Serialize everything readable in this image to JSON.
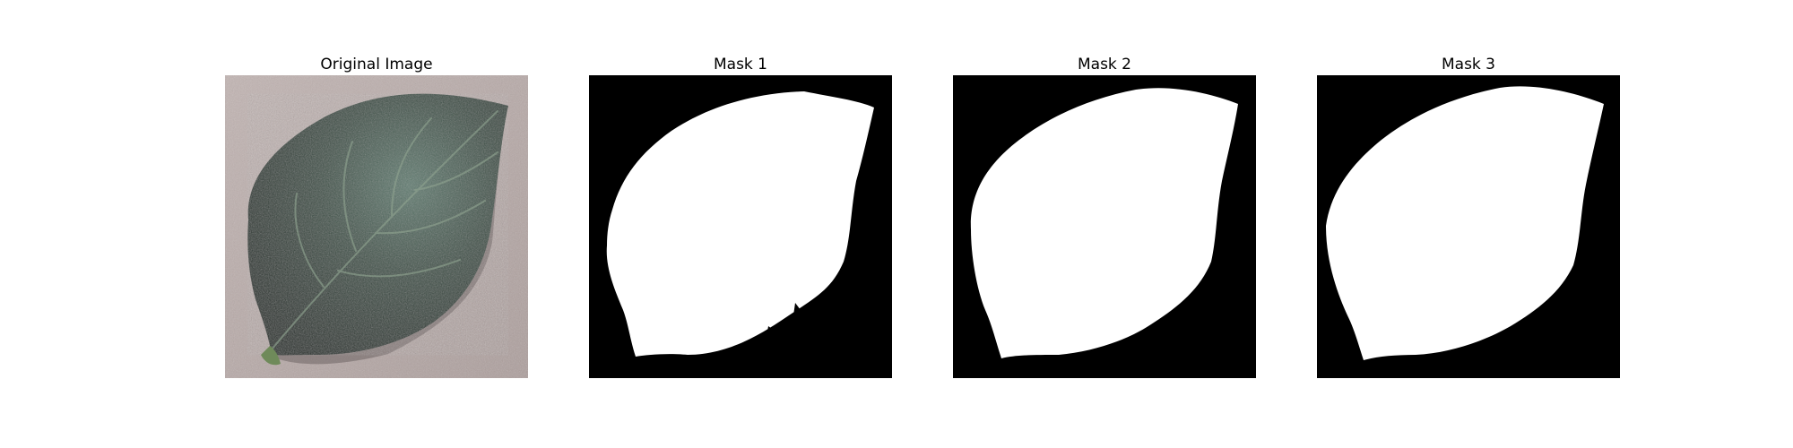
{
  "figure": {
    "panels": [
      {
        "title": "Original Image",
        "kind": "photo"
      },
      {
        "title": "Mask 1",
        "kind": "mask"
      },
      {
        "title": "Mask 2",
        "kind": "mask"
      },
      {
        "title": "Mask 3",
        "kind": "mask"
      }
    ]
  },
  "colors": {
    "background": "#ffffff",
    "photo_surface": "#b8aaa8",
    "leaf_dark": "#26342c",
    "leaf_mid": "#3b4f45",
    "leaf_light": "#607d71",
    "vein": "#8ea28f",
    "mask_background": "#000000",
    "mask_foreground": "#ffffff"
  }
}
